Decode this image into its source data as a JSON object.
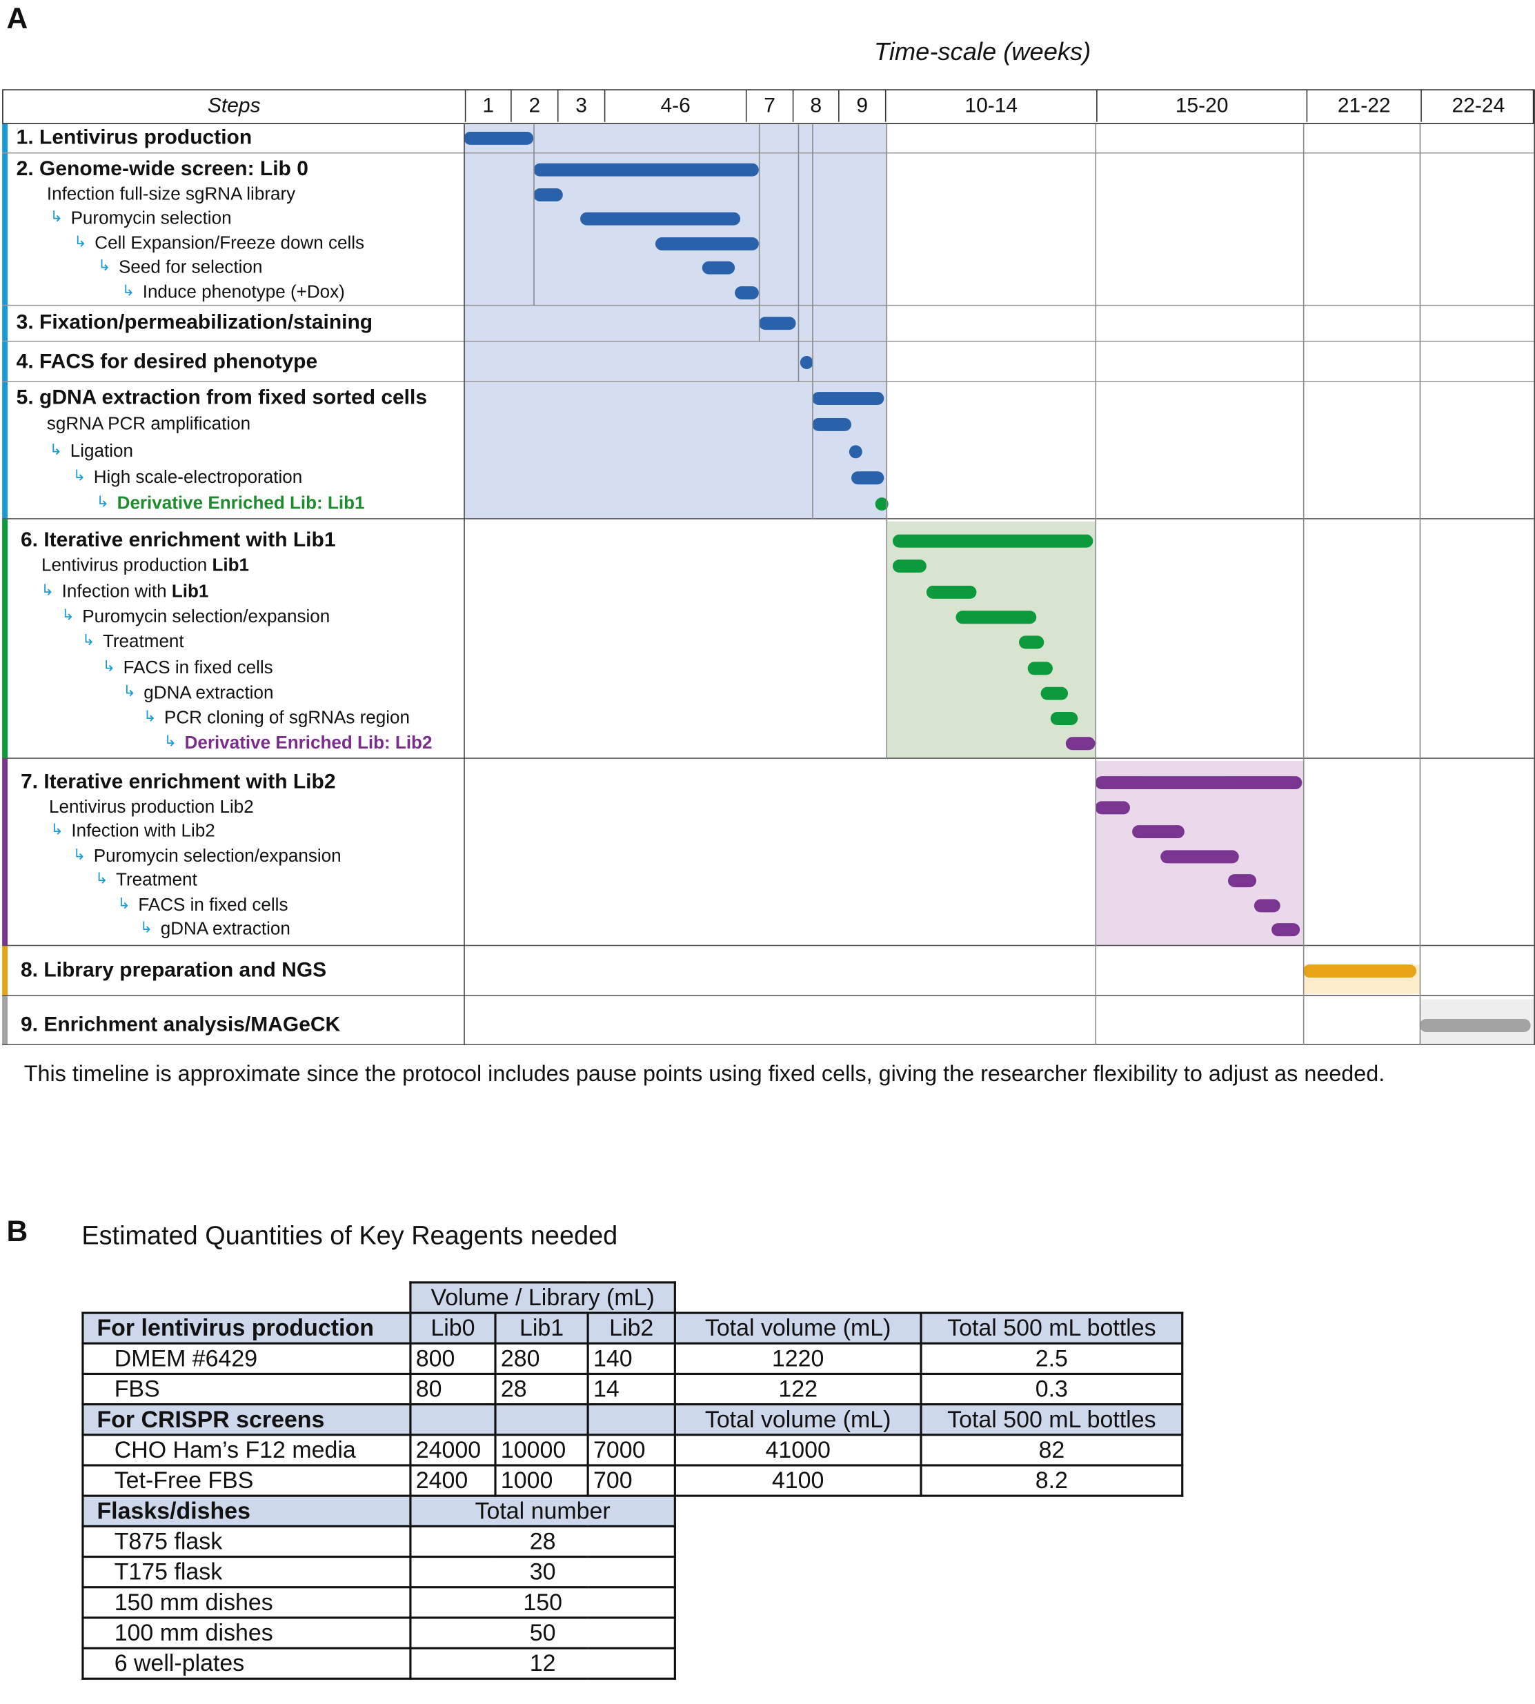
{
  "panel_a": {
    "letter": "A",
    "timescale_label": "Time-scale (weeks)",
    "steps_header": "Steps",
    "week_columns": [
      {
        "label": "1",
        "start": 0,
        "end": 1
      },
      {
        "label": "2",
        "start": 1,
        "end": 2
      },
      {
        "label": "3",
        "start": 2,
        "end": 3
      },
      {
        "label": "4-6",
        "start": 3,
        "end": 6
      },
      {
        "label": "7",
        "start": 6,
        "end": 7
      },
      {
        "label": "8",
        "start": 7,
        "end": 8
      },
      {
        "label": "9",
        "start": 8,
        "end": 9
      },
      {
        "label": "10-14",
        "start": 9,
        "end": 14
      },
      {
        "label": "15-20",
        "start": 14,
        "end": 20
      },
      {
        "label": "21-22",
        "start": 20,
        "end": 22
      },
      {
        "label": "22-24",
        "start": 22,
        "end": 24
      }
    ],
    "colors": {
      "blue": "#2962aa",
      "green": "#0d9a3c",
      "purple": "#7a3590",
      "orange": "#e8a317",
      "gray": "#a3a3a3",
      "blue_shade": "#d5ddf1",
      "green_shade": "#d8e4d0",
      "purple_shade": "#e9d9eb",
      "orange_shade": "#fcecc9",
      "gray_shade": "#eeeeee",
      "stripe_blue": "#1a9bd7",
      "arrow": "#1a9bd7",
      "lib1_text": "#1e8c2e",
      "lib2_text": "#7b2d8e"
    },
    "steps": [
      {
        "title": "1. Lentivirus production",
        "section": "blue",
        "bar": [
          0,
          1.5
        ],
        "items": []
      },
      {
        "title": "2. Genome-wide screen: Lib 0",
        "section": "blue",
        "bar": [
          1.5,
          6.3
        ],
        "items": [
          {
            "label": "Infection full-size sgRNA library",
            "level": 0,
            "arrow": false,
            "bar": [
              1.5,
              2.15
            ]
          },
          {
            "label": "Puromycin selection",
            "level": 1,
            "arrow": true,
            "bar": [
              2.5,
              5.9
            ]
          },
          {
            "label": "Cell Expansion/Freeze down cells",
            "level": 2,
            "arrow": true,
            "bar": [
              4.1,
              6.3
            ]
          },
          {
            "label": "Seed for selection",
            "level": 3,
            "arrow": true,
            "bar": [
              5.1,
              5.8
            ]
          },
          {
            "label": "Induce phenotype (+Dox)",
            "level": 4,
            "arrow": true,
            "bar": [
              5.8,
              6.3
            ]
          }
        ]
      },
      {
        "title": "3. Fixation/permeabilization/staining",
        "section": "blue",
        "bar": [
          6.3,
          7.1
        ],
        "items": []
      },
      {
        "title": "4. FACS for desired phenotype",
        "section": "blue",
        "bar": [
          7.2,
          7.45
        ],
        "items": []
      },
      {
        "title": "5. gDNA extraction from fixed sorted cells",
        "section": "blue",
        "bar": [
          7.45,
          9.0
        ],
        "items": [
          {
            "label": "sgRNA PCR amplification",
            "level": 0,
            "arrow": false,
            "bar": [
              7.45,
              8.3
            ]
          },
          {
            "label": "Ligation",
            "level": 1,
            "arrow": true,
            "bar": [
              8.25,
              8.5
            ]
          },
          {
            "label": "High scale-electroporation",
            "level": 2,
            "arrow": true,
            "bar": [
              8.3,
              9.0
            ]
          },
          {
            "label": "Derivative Enriched Lib: Lib1",
            "level": 3,
            "arrow": true,
            "bar": [
              8.82,
              9.0
            ],
            "bar_color": "green",
            "text_color": "lib1_text",
            "bold": true
          }
        ]
      },
      {
        "title": "6. Iterative enrichment with Lib1",
        "section": "green",
        "bar": [
          9.2,
          13.95
        ],
        "items": [
          {
            "label": "Lentivirus production ",
            "bold_suffix": "Lib1",
            "level": 0,
            "arrow": false,
            "bar": [
              9.2,
              10.0
            ]
          },
          {
            "label": "Infection with ",
            "bold_suffix": "Lib1",
            "level": 1,
            "arrow": true,
            "bar": [
              10.0,
              11.2
            ]
          },
          {
            "label": "Puromycin selection/expansion",
            "level": 2,
            "arrow": true,
            "bar": [
              10.7,
              12.6
            ]
          },
          {
            "label": "Treatment",
            "level": 3,
            "arrow": true,
            "bar": [
              12.2,
              12.8
            ]
          },
          {
            "label": "FACS in fixed cells",
            "level": 4,
            "arrow": true,
            "bar": [
              12.4,
              13.0
            ]
          },
          {
            "label": "gDNA extraction",
            "level": 5,
            "arrow": true,
            "bar": [
              12.7,
              13.35
            ]
          },
          {
            "label": "PCR cloning of sgRNAs region",
            "level": 6,
            "arrow": true,
            "bar": [
              12.95,
              13.6
            ]
          },
          {
            "label": "Derivative Enriched Lib: Lib2",
            "level": 7,
            "arrow": true,
            "bar": [
              13.3,
              14.0
            ],
            "bar_color": "purple",
            "text_color": "lib2_text",
            "bold": true
          }
        ]
      },
      {
        "title": "7. Iterative enrichment with Lib2",
        "section": "purple",
        "bar": [
          14.0,
          19.9
        ],
        "items": [
          {
            "label": "Lentivirus production Lib2",
            "level": 0,
            "arrow": false,
            "bar": [
              14.0,
              15.0
            ]
          },
          {
            "label": "Infection with Lib2",
            "level": 1,
            "arrow": true,
            "bar": [
              15.05,
              16.55
            ]
          },
          {
            "label": "Puromycin selection/expansion",
            "level": 2,
            "arrow": true,
            "bar": [
              15.85,
              18.1
            ]
          },
          {
            "label": "Treatment",
            "level": 3,
            "arrow": true,
            "bar": [
              17.8,
              18.6
            ]
          },
          {
            "label": "FACS in fixed cells",
            "level": 4,
            "arrow": true,
            "bar": [
              18.55,
              19.3
            ]
          },
          {
            "label": "gDNA extraction",
            "level": 5,
            "arrow": true,
            "bar": [
              19.05,
              19.85
            ]
          }
        ]
      },
      {
        "title": "8. Library preparation and NGS",
        "section": "orange",
        "bar": [
          19.95,
          21.95
        ],
        "items": []
      },
      {
        "title": "9. Enrichment analysis/MAGeCK",
        "section": "gray",
        "bar": [
          22.0,
          23.95
        ],
        "items": []
      }
    ],
    "caption": "This timeline is approximate since the protocol includes pause points using fixed cells, giving the researcher flexibility to adjust as needed."
  },
  "panel_b": {
    "letter": "B",
    "title": "Estimated Quantities of Key Reagents needed",
    "volume_header": "Volume / Library (mL)",
    "lenti": {
      "header": [
        "For lentivirus production",
        "Lib0",
        "Lib1",
        "Lib2",
        "Total volume (mL)",
        "Total 500 mL bottles"
      ],
      "rows": [
        [
          "DMEM #6429",
          "800",
          "280",
          "140",
          "1220",
          "2.5"
        ],
        [
          "FBS",
          "80",
          "28",
          "14",
          "122",
          "0.3"
        ]
      ]
    },
    "crispr": {
      "header": [
        "For CRISPR screens",
        "",
        "",
        "",
        "Total volume (mL)",
        "Total 500 mL bottles"
      ],
      "rows": [
        [
          "CHO Ham’s F12 media",
          "24000",
          "10000",
          "7000",
          "41000",
          "82"
        ],
        [
          "Tet-Free FBS",
          "2400",
          "1000",
          "700",
          "4100",
          "8.2"
        ]
      ]
    },
    "flasks": {
      "header": [
        "Flasks/dishes",
        "Total number"
      ],
      "rows": [
        [
          "T875 flask",
          "28"
        ],
        [
          "T175 flask",
          "30"
        ],
        [
          "150 mm dishes",
          "150"
        ],
        [
          "100 mm dishes",
          "50"
        ],
        [
          "6 well-plates",
          "12"
        ]
      ]
    }
  }
}
